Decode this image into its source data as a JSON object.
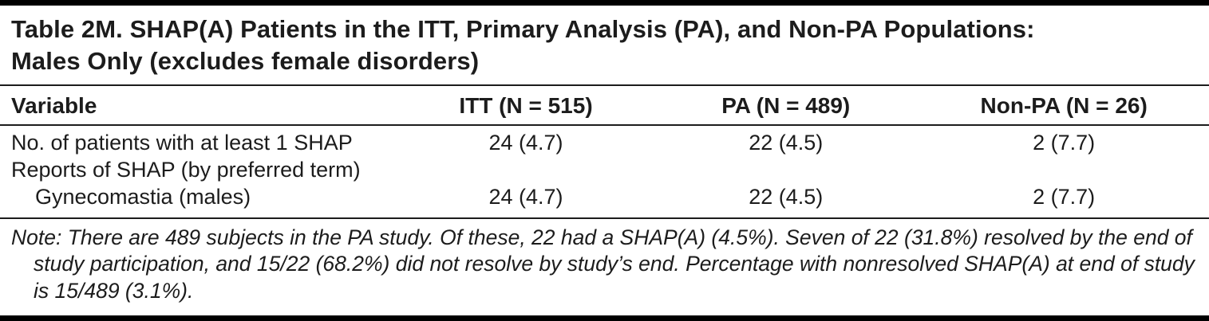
{
  "table": {
    "title": {
      "line1": "Table 2M. SHAP(A) Patients in the ITT, Primary Analysis (PA), and Non-PA Populations:",
      "line2": "Males Only (excludes female disorders)"
    },
    "columns": [
      "Variable",
      "ITT (N = 515)",
      "PA (N = 489)",
      "Non-PA (N = 26)"
    ],
    "rows": [
      {
        "label": "No. of patients with at least 1 SHAP",
        "values": [
          "24 (4.7)",
          "22 (4.5)",
          "2 (7.7)"
        ]
      },
      {
        "label": "Reports of SHAP (by preferred term)",
        "values": [
          "",
          "",
          ""
        ]
      },
      {
        "label": "Gynecomastia (males)",
        "values": [
          "24 (4.7)",
          "22 (4.5)",
          "2 (7.7)"
        ]
      }
    ],
    "note": "Note: There are 489 subjects in the PA study. Of these, 22 had a SHAP(A) (4.5%). Seven of 22 (31.8%) resolved by the end of study participation, and 15/22 (68.2%) did not resolve by study’s end. Percentage with nonresolved SHAP(A) at end of study is 15/489 (3.1%)."
  }
}
